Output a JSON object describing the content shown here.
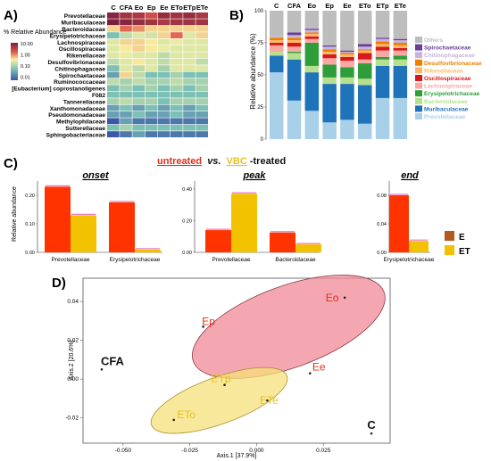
{
  "panel_labels": {
    "a": "A)",
    "b": "B)",
    "c": "C)",
    "d": "D)"
  },
  "colors": {
    "heat_high": "#7a1e3c",
    "heat_mid": "#f8f0a0",
    "heat_low": "#3a57a8",
    "untreated": "#ff3300",
    "vbc": "#f2c200",
    "legend_E": "#b05a1e",
    "legend_ET": "#f2c200",
    "ellipse_E": "#f08a96",
    "ellipse_ET": "#f5e07a",
    "label_E": "#e0301a",
    "label_ET": "#e8c21c"
  },
  "chart_data": [
    {
      "type": "heatmap",
      "panel": "A",
      "columns": [
        "C",
        "CFA",
        "Eo",
        "Ep",
        "Ee",
        "ETo",
        "ETp",
        "ETe"
      ],
      "rows": [
        "Prevotellaceae",
        "Muribaculaceae",
        "Bacteroidaceae",
        "Erysipelotrichaceae",
        "Lachnospiraceae",
        "Oscillospiraceae",
        "Rikenellaceae",
        "Desulfovibrionaceae",
        "Chitinophagaceae",
        "Spirochaetaceae",
        "Ruminococcaceae",
        "[Eubacterium] coprostanoligenes",
        "F082",
        "Tannerellaceae",
        "Xanthomonadaceae",
        "Pseudomonadaceae",
        "Methylophilaceae",
        "Sutterellaceae",
        "Sphingobacteriaceae"
      ],
      "values": [
        [
          20,
          12,
          10,
          5,
          15,
          12,
          15,
          10
        ],
        [
          25,
          20,
          15,
          12,
          10,
          12,
          12,
          12
        ],
        [
          1,
          3,
          2,
          1,
          1,
          1,
          1,
          1
        ],
        [
          0.1,
          0.3,
          0.5,
          0.4,
          1,
          3,
          0.5,
          1
        ],
        [
          0.5,
          1,
          1,
          0.8,
          0.5,
          0.6,
          0.5,
          0.5
        ],
        [
          0.5,
          0.8,
          1,
          0.8,
          0.6,
          0.5,
          0.5,
          0.5
        ],
        [
          0.5,
          0.6,
          0.5,
          0.5,
          0.3,
          0.5,
          0.5,
          0.5
        ],
        [
          0.3,
          0.5,
          0.8,
          0.5,
          0.3,
          0.5,
          0.5,
          0.3
        ],
        [
          0.1,
          0.5,
          0.3,
          0.5,
          0.2,
          0.5,
          0.5,
          0.5
        ],
        [
          0.05,
          1,
          0.3,
          0.1,
          0.1,
          0.2,
          0.1,
          0.1
        ],
        [
          0.3,
          0.2,
          0.3,
          0.2,
          0.2,
          0.3,
          0.2,
          0.2
        ],
        [
          0.1,
          0.2,
          0.1,
          0.2,
          0.1,
          0.2,
          0.1,
          0.2
        ],
        [
          0.1,
          0.1,
          0.1,
          0.1,
          0.1,
          0.1,
          0.1,
          0.1
        ],
        [
          0.2,
          0.3,
          0.2,
          0.2,
          0.1,
          0.2,
          0.2,
          0.2
        ],
        [
          0.05,
          0.1,
          0.05,
          0.1,
          0.05,
          0.1,
          0.05,
          0.1
        ],
        [
          0.05,
          0.05,
          0.1,
          0.05,
          0.05,
          0.1,
          0.05,
          0.05
        ],
        [
          0.01,
          0.05,
          0.02,
          0.02,
          0.02,
          0.02,
          0.02,
          0.02
        ],
        [
          0.1,
          0.2,
          0.1,
          0.1,
          0.1,
          0.1,
          0.1,
          0.1
        ],
        [
          0.01,
          0.02,
          0.05,
          0.02,
          0.02,
          0.02,
          0.02,
          0.02
        ]
      ],
      "legend_title": "% Relative Abundance",
      "legend_ticks": [
        "10.00",
        "1.00",
        "0.10",
        "0.01"
      ]
    },
    {
      "type": "bar",
      "stacked": true,
      "panel": "B",
      "categories": [
        "C",
        "CFA",
        "Eo",
        "Ep",
        "Ee",
        "ETo",
        "ETp",
        "ETe"
      ],
      "ylabel": "Relative abundance (%)",
      "ylim": [
        0,
        100
      ],
      "yticks": [
        "0",
        "25",
        "50",
        "75",
        "100"
      ],
      "legend_position": "right",
      "series": [
        {
          "name": "Prevotellaceae",
          "color": "#a8d0e8",
          "values": [
            52,
            30,
            22,
            13,
            15,
            12,
            32,
            32
          ]
        },
        {
          "name": "Muribaculaceae",
          "color": "#1f73b8",
          "values": [
            13,
            32,
            30,
            30,
            28,
            30,
            25,
            25
          ]
        },
        {
          "name": "Bacteroidaceae",
          "color": "#b6e08e",
          "values": [
            3,
            5,
            5,
            5,
            5,
            5,
            5,
            5
          ]
        },
        {
          "name": "Erysipelotrichaceae",
          "color": "#2f9e3a",
          "values": [
            0,
            1,
            18,
            10,
            8,
            12,
            2,
            3
          ]
        },
        {
          "name": "Lachnospiraceae",
          "color": "#f7a9a2",
          "values": [
            5,
            4,
            3,
            5,
            5,
            3,
            5,
            4
          ]
        },
        {
          "name": "Oscillospiraceae",
          "color": "#d7191c",
          "values": [
            2,
            3,
            2,
            3,
            3,
            5,
            3,
            2
          ]
        },
        {
          "name": "Rikenellaceae",
          "color": "#fdb96a",
          "values": [
            2,
            2,
            2,
            2,
            2,
            2,
            2,
            2
          ]
        },
        {
          "name": "Desulfovibrionaceae",
          "color": "#f07f00",
          "values": [
            2,
            2,
            1,
            2,
            1,
            1,
            2,
            2
          ]
        },
        {
          "name": "Chitinophagaceae",
          "color": "#c8b4dc",
          "values": [
            1,
            2,
            2,
            2,
            1,
            2,
            2,
            2
          ]
        },
        {
          "name": "Spirochaetaceae",
          "color": "#6a3d9a",
          "values": [
            0,
            2,
            1,
            1,
            1,
            2,
            1,
            1
          ]
        },
        {
          "name": "Others",
          "color": "#bdbdbd",
          "values": [
            20,
            17,
            14,
            27,
            31,
            26,
            21,
            22
          ]
        }
      ]
    },
    {
      "type": "bar",
      "panel": "C",
      "title": "onset",
      "categories": [
        "Prevotellaceae",
        "Erysipelotrichaceae"
      ],
      "ylabel": "Relative abundance",
      "ylim": [
        0,
        0.25
      ],
      "yticks": [
        "0.00",
        "0.10",
        "0.20"
      ],
      "series": [
        {
          "name": "E",
          "values": [
            0.23,
            0.175
          ]
        },
        {
          "name": "ET",
          "values": [
            0.13,
            0.01
          ]
        }
      ]
    },
    {
      "type": "bar",
      "panel": "C",
      "title": "peak",
      "categories": [
        "Prevotellaceae",
        "Bacteroidaceae"
      ],
      "ylim": [
        0,
        0.45
      ],
      "yticks": [
        "0.00",
        "0.20",
        "0.40"
      ],
      "series": [
        {
          "name": "E",
          "values": [
            0.14,
            0.125
          ]
        },
        {
          "name": "ET",
          "values": [
            0.37,
            0.05
          ]
        }
      ]
    },
    {
      "type": "bar",
      "panel": "C",
      "title": "end",
      "categories": [
        "Erysipelotrichaceae"
      ],
      "ylim": [
        0,
        0.1
      ],
      "yticks": [
        "0.00",
        "0.04",
        "0.08"
      ],
      "series": [
        {
          "name": "E",
          "values": [
            0.08
          ]
        },
        {
          "name": "ET",
          "values": [
            0.016
          ]
        }
      ]
    },
    {
      "type": "scatter",
      "panel": "D",
      "xlabel": "Axis.1  [37.9%]",
      "ylabel": "Axis.2  [20.6%]",
      "xlim": [
        -0.065,
        0.05
      ],
      "ylim": [
        -0.033,
        0.052
      ],
      "xticks": [
        -0.05,
        -0.025,
        0,
        0.025
      ],
      "yticks": [
        -0.02,
        0,
        0.02,
        0.04
      ],
      "xtick_labels": [
        "-0.050",
        "-0.025",
        "0.000",
        "0.025"
      ],
      "ytick_labels": [
        "-0.02",
        "0.00",
        "0.02",
        "0.04"
      ],
      "points": [
        {
          "label": "Eo",
          "x": 0.033,
          "y": 0.042,
          "group": "E"
        },
        {
          "label": "Ep",
          "x": -0.02,
          "y": 0.027,
          "group": "E"
        },
        {
          "label": "Ee",
          "x": 0.02,
          "y": 0.003,
          "group": "E"
        },
        {
          "label": "ETo",
          "x": -0.031,
          "y": -0.021,
          "group": "ET"
        },
        {
          "label": "ETp",
          "x": -0.012,
          "y": -0.003,
          "group": "ET"
        },
        {
          "label": "ETe",
          "x": 0.004,
          "y": -0.011,
          "group": "ET"
        },
        {
          "label": "CFA",
          "x": -0.058,
          "y": 0.005,
          "group": "ref"
        },
        {
          "label": "C",
          "x": 0.043,
          "y": -0.028,
          "group": "ref"
        }
      ],
      "ellipses": [
        {
          "group": "E",
          "cx": 0.012,
          "cy": 0.027,
          "rx": 0.038,
          "ry": 0.021,
          "rotation": -20
        },
        {
          "group": "ET",
          "cx": -0.014,
          "cy": -0.011,
          "rx": 0.027,
          "ry": 0.012,
          "rotation": -20
        }
      ]
    }
  ],
  "panel_c": {
    "title_part1": "untreated",
    "title_mid": "vs.",
    "title_part2": "VBC",
    "title_suffix": "-treated",
    "legend": [
      "E",
      "ET"
    ]
  }
}
